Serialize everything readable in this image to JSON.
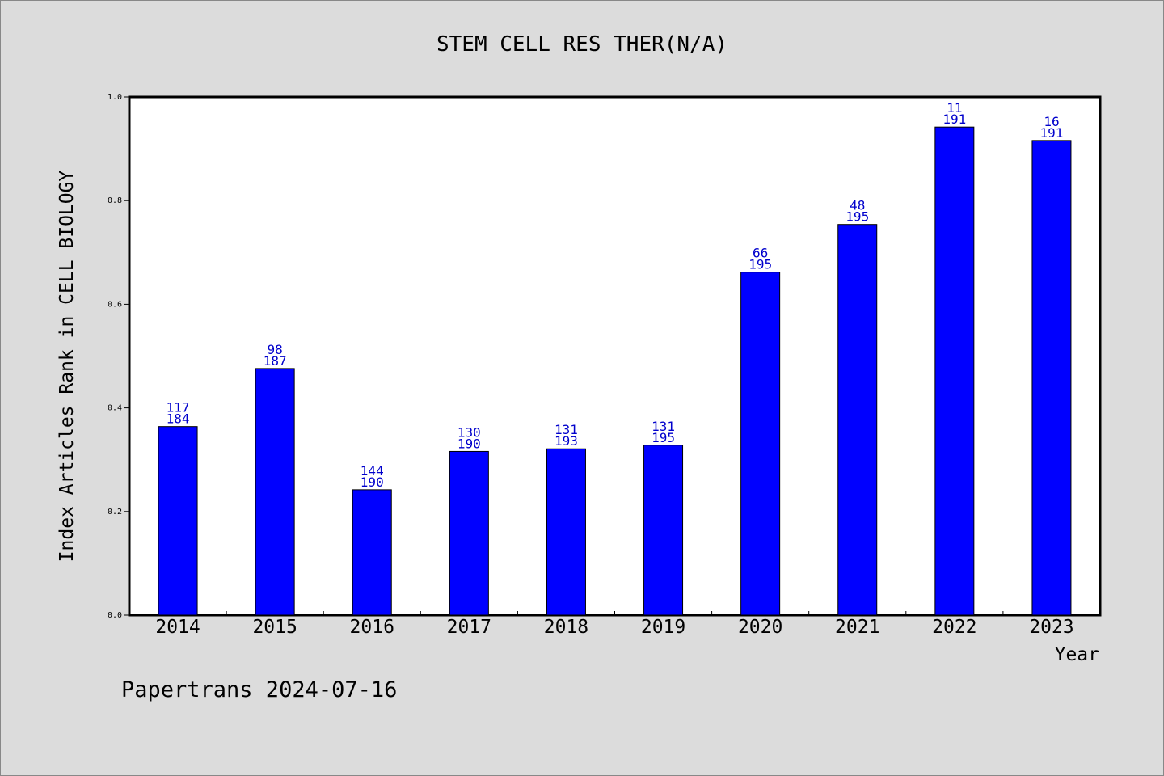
{
  "chart_data": {
    "type": "bar",
    "title": "STEM CELL RES THER(N/A)",
    "xlabel": "Year",
    "ylabel": "Index Articles Rank in CELL BIOLOGY",
    "ylim": [
      0,
      1.0
    ],
    "yticks": [
      "0.0",
      "0.2",
      "0.4",
      "0.6",
      "0.8",
      "1.0"
    ],
    "grid": false,
    "bar_color": "#0000ff",
    "label_color": "#0000cc",
    "categories": [
      "2014",
      "2015",
      "2016",
      "2017",
      "2018",
      "2019",
      "2020",
      "2021",
      "2022",
      "2023"
    ],
    "values": [
      0.364,
      0.476,
      0.242,
      0.316,
      0.321,
      0.328,
      0.662,
      0.754,
      0.942,
      0.916
    ],
    "rank_labels": [
      "117",
      "98",
      "144",
      "130",
      "131",
      "131",
      "66",
      "48",
      "11",
      "16"
    ],
    "total_labels": [
      "184",
      "187",
      "190",
      "190",
      "193",
      "195",
      "195",
      "195",
      "191",
      "191"
    ]
  },
  "footer": {
    "credit": "Papertrans 2024-07-16"
  }
}
